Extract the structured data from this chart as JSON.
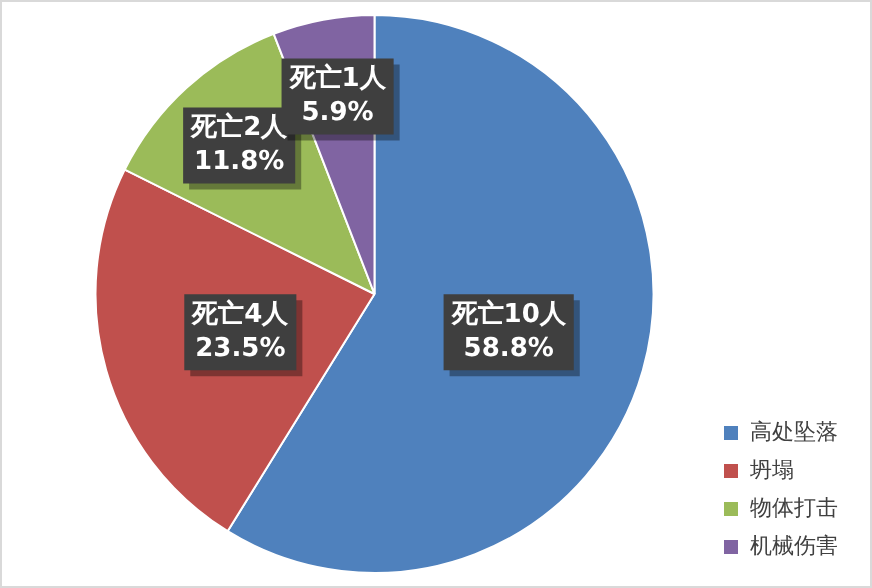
{
  "chart_data": {
    "type": "pie",
    "categories": [
      "高处坠落",
      "坍塌",
      "物体打击",
      "机械伤害"
    ],
    "values": [
      10,
      4,
      2,
      1
    ],
    "colors": [
      "#4f81bd",
      "#c0504d",
      "#9bbb59",
      "#8064a2"
    ],
    "value_labels": [
      "死亡10人\n58.8%",
      "死亡4人\n23.5%",
      "死亡2人\n11.8%",
      "死亡1人\n5.9%"
    ],
    "legend": "bottom right"
  }
}
